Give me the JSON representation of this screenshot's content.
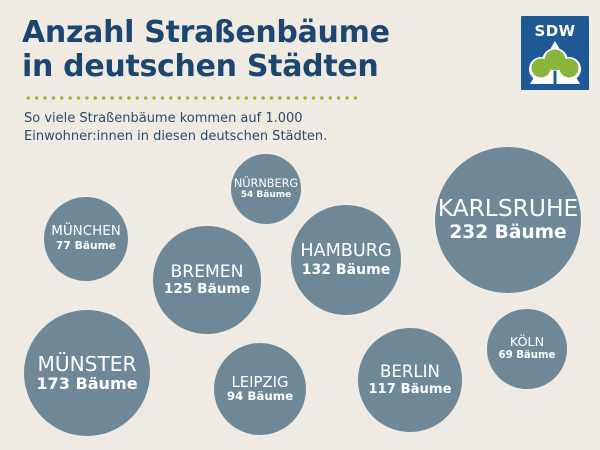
{
  "header": {
    "title_line1": "Anzahl Straßenbäume",
    "title_line2": "in deutschen Städten",
    "subtitle_line1": "So viele Straßenbäume kommen auf 1.000",
    "subtitle_line2": "Einwohner:innen in diesen deutschen Städten."
  },
  "logo": {
    "text": "SDW"
  },
  "colors": {
    "background": "#efebe3",
    "title": "#1c4670",
    "bubble": "#6f8898",
    "accent_green": "#93b62f",
    "logo_blue": "#1f5a97"
  },
  "chart_data": {
    "type": "bubble",
    "title": "Anzahl Straßenbäume in deutschen Städten",
    "unit": "Bäume",
    "categories": [
      "Nürnberg",
      "München",
      "Bremen",
      "Hamburg",
      "Karlsruhe",
      "Münster",
      "Leipzig",
      "Berlin",
      "Köln"
    ],
    "values": [
      54,
      77,
      125,
      132,
      232,
      173,
      94,
      117,
      69
    ],
    "labels": {
      "cities": [
        "NÜRNBERG",
        "MÜNCHEN",
        "BREMEN",
        "HAMBURG",
        "KARLSRUHE",
        "MÜNSTER",
        "LEIPZIG",
        "BERLIN",
        "KÖLN"
      ],
      "counts": [
        "54 Bäume",
        "77 Bäume",
        "125 Bäume",
        "132 Bäume",
        "232 Bäume",
        "173 Bäume",
        "94 Bäume",
        "117 Bäume",
        "69 Bäume"
      ]
    }
  }
}
